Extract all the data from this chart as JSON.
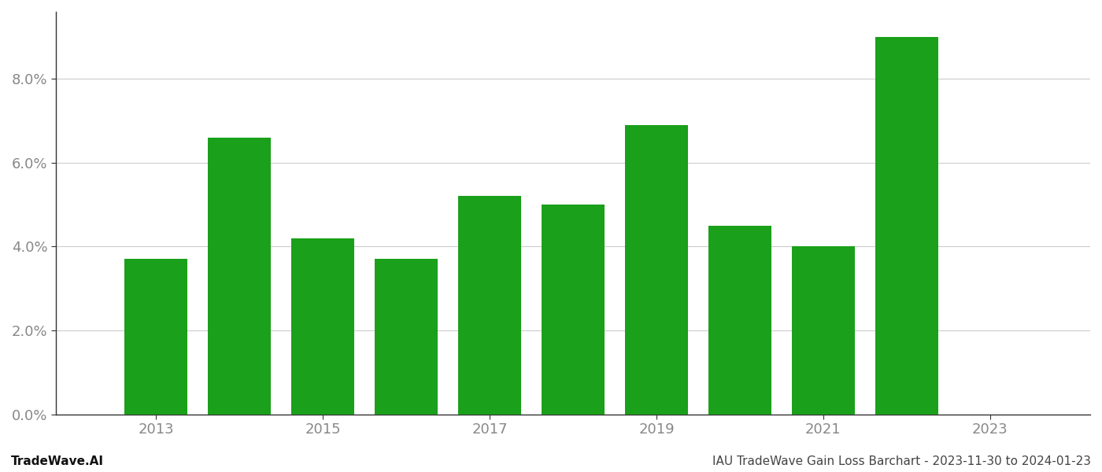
{
  "years": [
    2013,
    2014,
    2015,
    2016,
    2017,
    2018,
    2019,
    2020,
    2021,
    2022
  ],
  "values": [
    0.037,
    0.066,
    0.042,
    0.037,
    0.052,
    0.05,
    0.069,
    0.045,
    0.04,
    0.09
  ],
  "bar_color": "#1aa01a",
  "background_color": "#ffffff",
  "ylim": [
    0,
    0.096
  ],
  "yticks": [
    0.0,
    0.02,
    0.04,
    0.06,
    0.08
  ],
  "xtick_years": [
    2013,
    2015,
    2017,
    2019,
    2021,
    2023
  ],
  "xlim_left": 2011.8,
  "xlim_right": 2024.2,
  "grid_color": "#cccccc",
  "spine_color": "#333333",
  "tick_label_color": "#888888",
  "footer_left": "TradeWave.AI",
  "footer_right": "IAU TradeWave Gain Loss Barchart - 2023-11-30 to 2024-01-23",
  "footer_fontsize": 11,
  "bar_width": 0.75
}
